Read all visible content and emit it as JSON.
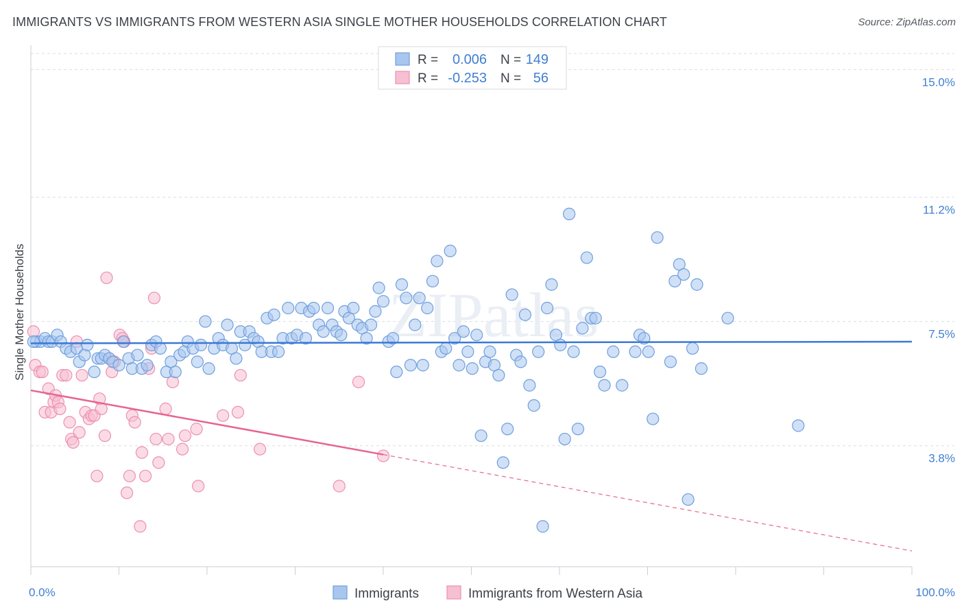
{
  "header": {
    "title": "IMMIGRANTS VS IMMIGRANTS FROM WESTERN ASIA SINGLE MOTHER HOUSEHOLDS CORRELATION CHART",
    "source": "Source: ZipAtlas.com"
  },
  "watermark": "ZIPatlas",
  "colors": {
    "blue_fill": "#a9c6ee",
    "blue_stroke": "#6e9fdc",
    "blue_line": "#3b78d6",
    "pink_fill": "#f7bfd2",
    "pink_stroke": "#eb8fb0",
    "pink_line": "#e7648f",
    "axis_text": "#3f7fd1",
    "grid": "#d9dde3"
  },
  "legend_box": {
    "rows": [
      {
        "r_label": "R =",
        "r_value": "0.006",
        "n_label": "N =",
        "n_value": "149"
      },
      {
        "r_label": "R =",
        "r_value": "-0.253",
        "n_label": "N =",
        "n_value": "56"
      }
    ]
  },
  "chart_data": {
    "type": "scatter",
    "ylabel": "Single Mother Households",
    "xlabel": "",
    "xlim": [
      0,
      100
    ],
    "ylim": [
      0.2,
      15.6
    ],
    "x_tick_labels": [
      {
        "value": 0,
        "label": "0.0%"
      },
      {
        "value": 100,
        "label": "100.0%"
      }
    ],
    "y_ticks": [
      {
        "value": 3.8,
        "label": "3.8%"
      },
      {
        "value": 7.5,
        "label": "7.5%"
      },
      {
        "value": 11.2,
        "label": "11.2%"
      },
      {
        "value": 15.0,
        "label": "15.0%"
      }
    ],
    "grid": "horizontal dashed",
    "legend_position": "bottom-center",
    "series": [
      {
        "name": "Immigrants",
        "color_key": "blue",
        "n": 149,
        "r": 0.006,
        "trend": {
          "x0": 0,
          "y0": 6.85,
          "x1": 100,
          "y1": 6.9
        },
        "points": [
          [
            0.6,
            6.9
          ],
          [
            1.1,
            6.9
          ],
          [
            1.6,
            7.0
          ],
          [
            2.0,
            6.9
          ],
          [
            2.4,
            6.9
          ],
          [
            3.0,
            7.1
          ],
          [
            3.4,
            6.9
          ],
          [
            4.0,
            6.7
          ],
          [
            4.5,
            6.6
          ],
          [
            5.2,
            6.7
          ],
          [
            5.5,
            6.3
          ],
          [
            6.1,
            6.5
          ],
          [
            6.4,
            6.8
          ],
          [
            7.2,
            6.0
          ],
          [
            7.6,
            6.4
          ],
          [
            8.0,
            6.4
          ],
          [
            8.4,
            6.5
          ],
          [
            8.9,
            6.4
          ],
          [
            9.3,
            6.3
          ],
          [
            10.0,
            6.2
          ],
          [
            10.5,
            6.9
          ],
          [
            11.1,
            6.4
          ],
          [
            11.5,
            6.1
          ],
          [
            12.1,
            6.5
          ],
          [
            12.6,
            6.1
          ],
          [
            13.2,
            6.2
          ],
          [
            13.7,
            6.8
          ],
          [
            14.2,
            6.9
          ],
          [
            14.7,
            6.7
          ],
          [
            15.4,
            6.0
          ],
          [
            15.9,
            6.3
          ],
          [
            16.4,
            6.0
          ],
          [
            16.9,
            6.5
          ],
          [
            17.4,
            6.6
          ],
          [
            17.8,
            6.9
          ],
          [
            18.4,
            6.7
          ],
          [
            18.9,
            6.3
          ],
          [
            19.3,
            6.8
          ],
          [
            19.8,
            7.5
          ],
          [
            20.2,
            6.1
          ],
          [
            20.8,
            6.7
          ],
          [
            21.3,
            7.0
          ],
          [
            21.8,
            6.8
          ],
          [
            22.3,
            7.4
          ],
          [
            22.8,
            6.7
          ],
          [
            23.3,
            6.4
          ],
          [
            23.8,
            7.2
          ],
          [
            24.3,
            6.8
          ],
          [
            24.8,
            7.2
          ],
          [
            25.3,
            7.0
          ],
          [
            25.8,
            6.9
          ],
          [
            26.2,
            6.6
          ],
          [
            26.8,
            7.6
          ],
          [
            27.3,
            6.6
          ],
          [
            27.6,
            7.7
          ],
          [
            28.1,
            6.6
          ],
          [
            28.6,
            7.0
          ],
          [
            29.2,
            7.9
          ],
          [
            29.6,
            7.0
          ],
          [
            30.2,
            7.1
          ],
          [
            30.7,
            7.9
          ],
          [
            31.2,
            7.0
          ],
          [
            31.6,
            7.8
          ],
          [
            32.1,
            7.9
          ],
          [
            32.7,
            7.4
          ],
          [
            33.2,
            7.2
          ],
          [
            33.7,
            7.9
          ],
          [
            34.2,
            7.4
          ],
          [
            34.7,
            7.2
          ],
          [
            35.2,
            7.1
          ],
          [
            35.6,
            7.8
          ],
          [
            36.1,
            7.6
          ],
          [
            36.6,
            7.9
          ],
          [
            37.1,
            7.4
          ],
          [
            37.6,
            7.3
          ],
          [
            38.1,
            7.0
          ],
          [
            38.6,
            7.4
          ],
          [
            39.1,
            7.8
          ],
          [
            39.5,
            8.5
          ],
          [
            40.0,
            8.1
          ],
          [
            40.6,
            6.9
          ],
          [
            41.1,
            7.0
          ],
          [
            41.5,
            6.0
          ],
          [
            42.1,
            8.6
          ],
          [
            42.6,
            8.2
          ],
          [
            43.1,
            6.2
          ],
          [
            43.6,
            7.4
          ],
          [
            44.1,
            8.2
          ],
          [
            44.5,
            6.2
          ],
          [
            45.0,
            7.9
          ],
          [
            45.6,
            8.7
          ],
          [
            46.1,
            9.3
          ],
          [
            46.6,
            6.6
          ],
          [
            47.1,
            6.7
          ],
          [
            47.6,
            9.6
          ],
          [
            48.1,
            7.0
          ],
          [
            48.6,
            6.2
          ],
          [
            49.1,
            7.2
          ],
          [
            49.6,
            6.6
          ],
          [
            50.1,
            6.1
          ],
          [
            50.6,
            7.1
          ],
          [
            51.1,
            4.1
          ],
          [
            51.6,
            6.3
          ],
          [
            52.1,
            6.6
          ],
          [
            52.6,
            6.2
          ],
          [
            53.1,
            5.9
          ],
          [
            53.6,
            3.3
          ],
          [
            54.1,
            4.3
          ],
          [
            54.6,
            8.3
          ],
          [
            55.1,
            6.5
          ],
          [
            55.6,
            6.3
          ],
          [
            56.1,
            7.7
          ],
          [
            56.6,
            5.6
          ],
          [
            57.1,
            5.0
          ],
          [
            57.6,
            6.6
          ],
          [
            58.1,
            1.4
          ],
          [
            58.6,
            7.9
          ],
          [
            59.1,
            8.6
          ],
          [
            59.6,
            7.1
          ],
          [
            60.1,
            6.8
          ],
          [
            60.6,
            4.0
          ],
          [
            61.1,
            10.7
          ],
          [
            61.6,
            6.6
          ],
          [
            62.1,
            4.3
          ],
          [
            62.6,
            7.3
          ],
          [
            63.1,
            9.4
          ],
          [
            63.6,
            7.6
          ],
          [
            64.1,
            7.6
          ],
          [
            64.6,
            6.0
          ],
          [
            65.1,
            5.6
          ],
          [
            66.1,
            6.6
          ],
          [
            67.1,
            5.6
          ],
          [
            68.6,
            6.6
          ],
          [
            69.1,
            7.1
          ],
          [
            69.6,
            7.0
          ],
          [
            70.1,
            6.6
          ],
          [
            70.6,
            4.6
          ],
          [
            71.1,
            10.0
          ],
          [
            72.6,
            6.3
          ],
          [
            73.1,
            8.7
          ],
          [
            73.6,
            9.2
          ],
          [
            74.1,
            8.9
          ],
          [
            74.6,
            2.2
          ],
          [
            75.1,
            6.7
          ],
          [
            75.6,
            8.6
          ],
          [
            76.1,
            6.1
          ],
          [
            79.1,
            7.6
          ],
          [
            87.1,
            4.4
          ],
          [
            0.3,
            6.9
          ]
        ]
      },
      {
        "name": "Immigrants from Western Asia",
        "color_key": "pink",
        "n": 56,
        "r": -0.253,
        "trend": {
          "x0": 0,
          "y0": 5.45,
          "x1": 100,
          "y1": 0.67,
          "solid_until_x": 40
        },
        "points": [
          [
            0.3,
            7.2
          ],
          [
            0.5,
            6.2
          ],
          [
            1.0,
            6.0
          ],
          [
            1.3,
            6.0
          ],
          [
            1.6,
            4.8
          ],
          [
            2.0,
            5.5
          ],
          [
            2.3,
            4.8
          ],
          [
            2.6,
            5.1
          ],
          [
            2.8,
            5.3
          ],
          [
            3.1,
            5.1
          ],
          [
            3.3,
            4.9
          ],
          [
            3.6,
            5.9
          ],
          [
            4.0,
            5.9
          ],
          [
            4.4,
            4.5
          ],
          [
            4.6,
            4.0
          ],
          [
            4.8,
            3.9
          ],
          [
            5.2,
            6.9
          ],
          [
            5.5,
            4.2
          ],
          [
            5.8,
            5.9
          ],
          [
            6.2,
            4.8
          ],
          [
            6.6,
            4.6
          ],
          [
            6.9,
            4.7
          ],
          [
            7.2,
            4.7
          ],
          [
            7.5,
            2.9
          ],
          [
            7.8,
            5.2
          ],
          [
            8.0,
            4.9
          ],
          [
            8.4,
            4.1
          ],
          [
            8.6,
            8.8
          ],
          [
            8.9,
            6.4
          ],
          [
            9.2,
            6.0
          ],
          [
            9.5,
            6.3
          ],
          [
            10.1,
            7.1
          ],
          [
            10.4,
            7.0
          ],
          [
            10.6,
            6.9
          ],
          [
            10.9,
            2.4
          ],
          [
            11.2,
            2.9
          ],
          [
            11.5,
            4.7
          ],
          [
            11.8,
            4.5
          ],
          [
            12.4,
            1.4
          ],
          [
            12.6,
            3.6
          ],
          [
            13.0,
            2.9
          ],
          [
            13.4,
            6.1
          ],
          [
            13.7,
            6.7
          ],
          [
            14.0,
            8.2
          ],
          [
            14.2,
            4.0
          ],
          [
            14.5,
            3.3
          ],
          [
            15.3,
            4.9
          ],
          [
            15.6,
            4.0
          ],
          [
            16.1,
            5.7
          ],
          [
            17.2,
            3.7
          ],
          [
            17.5,
            4.1
          ],
          [
            18.8,
            4.3
          ],
          [
            19.0,
            2.6
          ],
          [
            21.8,
            4.7
          ],
          [
            23.5,
            4.8
          ],
          [
            23.8,
            5.9
          ],
          [
            26.0,
            3.7
          ],
          [
            35.0,
            2.6
          ],
          [
            40.0,
            3.5
          ],
          [
            37.2,
            5.7
          ]
        ]
      }
    ]
  }
}
